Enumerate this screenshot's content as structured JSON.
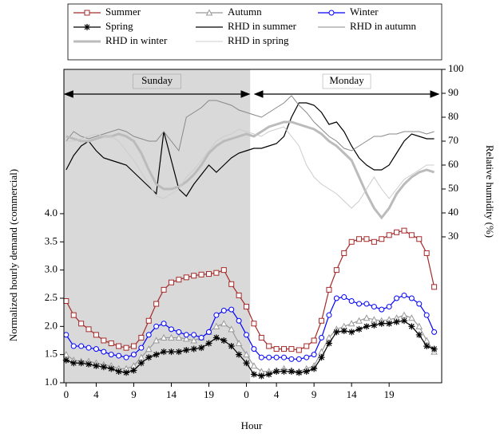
{
  "chart_data": {
    "type": "line",
    "xlabel": "Hour",
    "ylabel": "Normalized hourly demand (commercial)",
    "y2label": "Relative humidity (%)",
    "x": [
      0,
      1,
      2,
      3,
      4,
      5,
      6,
      7,
      8,
      9,
      10,
      11,
      12,
      13,
      14,
      15,
      16,
      17,
      18,
      19,
      20,
      21,
      22,
      23,
      24,
      25,
      26,
      27,
      28,
      29,
      30,
      31,
      32,
      33,
      34,
      35,
      36,
      37,
      38,
      39,
      40,
      41,
      42,
      43,
      44,
      45,
      46,
      47,
      48,
      49
    ],
    "xlim": [
      -0.3,
      50
    ],
    "xticks": [
      0,
      4,
      9,
      14,
      19,
      {
        "value": 24,
        "label": "0"
      },
      {
        "value": 28,
        "label": "4"
      },
      {
        "value": 33,
        "label": "9"
      },
      {
        "value": 38,
        "label": "14"
      },
      {
        "value": 43,
        "label": "19"
      }
    ],
    "ylim": [
      1,
      6.56
    ],
    "yticks": [
      {
        "value": 1,
        "label": "1.0"
      },
      1.5,
      {
        "value": 2,
        "label": "2.0"
      },
      2.5,
      {
        "value": 3,
        "label": "3.0"
      },
      3.5,
      {
        "value": 4,
        "label": "4.0"
      }
    ],
    "y2lim": [
      -31,
      100
    ],
    "y2ticks": [
      30,
      40,
      50,
      60,
      70,
      80,
      90,
      100
    ],
    "shaded_xlim": [
      -0.3,
      24.5
    ],
    "annotations": [
      {
        "text": "Sunday",
        "from": -0.3,
        "to": 24.5
      },
      {
        "text": "Monday",
        "from": 25,
        "to": 49.7
      }
    ],
    "series": [
      {
        "name": "Summer",
        "color": "#a52a2a",
        "marker": "square",
        "width": 1.2,
        "values": [
          2.45,
          2.2,
          2.05,
          1.95,
          1.85,
          1.75,
          1.7,
          1.65,
          1.62,
          1.65,
          1.8,
          2.1,
          2.4,
          2.65,
          2.78,
          2.83,
          2.87,
          2.9,
          2.92,
          2.93,
          2.95,
          3.0,
          2.75,
          2.55,
          2.35,
          2.05,
          1.8,
          1.65,
          1.6,
          1.6,
          1.6,
          1.58,
          1.65,
          1.75,
          2.1,
          2.65,
          3.0,
          3.3,
          3.5,
          3.55,
          3.55,
          3.5,
          3.55,
          3.62,
          3.67,
          3.7,
          3.62,
          3.55,
          3.3,
          2.7
        ]
      },
      {
        "name": "Autumn",
        "color": "#999999",
        "marker": "triangle",
        "width": 1.2,
        "values": [
          1.5,
          1.4,
          1.38,
          1.38,
          1.35,
          1.32,
          1.3,
          1.25,
          1.25,
          1.3,
          1.45,
          1.6,
          1.75,
          1.8,
          1.8,
          1.8,
          1.78,
          1.75,
          1.8,
          1.9,
          2.0,
          2.05,
          1.95,
          1.7,
          1.5,
          1.3,
          1.2,
          1.2,
          1.22,
          1.25,
          1.22,
          1.2,
          1.25,
          1.3,
          1.55,
          1.8,
          1.95,
          2.0,
          2.05,
          2.1,
          2.15,
          2.12,
          2.1,
          2.12,
          2.15,
          2.2,
          2.15,
          2.0,
          1.75,
          1.55
        ]
      },
      {
        "name": "Winter",
        "color": "#0000ff",
        "marker": "circle",
        "width": 1.2,
        "values": [
          1.85,
          1.65,
          1.65,
          1.62,
          1.6,
          1.55,
          1.5,
          1.48,
          1.45,
          1.5,
          1.62,
          1.85,
          2.0,
          2.05,
          1.95,
          1.9,
          1.85,
          1.85,
          1.8,
          1.9,
          2.2,
          2.28,
          2.3,
          2.1,
          1.85,
          1.6,
          1.45,
          1.45,
          1.45,
          1.45,
          1.42,
          1.42,
          1.45,
          1.5,
          1.8,
          2.2,
          2.5,
          2.52,
          2.45,
          2.4,
          2.4,
          2.35,
          2.3,
          2.35,
          2.5,
          2.55,
          2.5,
          2.4,
          2.2,
          1.9
        ]
      },
      {
        "name": "Spring",
        "color": "#000000",
        "marker": "star",
        "width": 1.2,
        "values": [
          1.4,
          1.35,
          1.35,
          1.33,
          1.3,
          1.28,
          1.25,
          1.2,
          1.18,
          1.22,
          1.35,
          1.45,
          1.5,
          1.55,
          1.55,
          1.55,
          1.58,
          1.6,
          1.62,
          1.7,
          1.8,
          1.75,
          1.65,
          1.5,
          1.35,
          1.15,
          1.12,
          1.15,
          1.2,
          1.2,
          1.2,
          1.18,
          1.2,
          1.25,
          1.45,
          1.7,
          1.9,
          1.92,
          1.9,
          1.95,
          2.0,
          2.02,
          2.05,
          2.05,
          2.08,
          2.1,
          2.0,
          1.85,
          1.65,
          1.6
        ]
      },
      {
        "name": "RHD in summer",
        "color": "#000000",
        "axis": "y2",
        "width": 1.2,
        "values": [
          58,
          64,
          68,
          70,
          66,
          63,
          62,
          61,
          60,
          57,
          54,
          51,
          48,
          74,
          62,
          50,
          47,
          52,
          56,
          60,
          57,
          60,
          63,
          65,
          66,
          67,
          67,
          68,
          69,
          72,
          80,
          86,
          86,
          85,
          82,
          77,
          78,
          74,
          68,
          63,
          60,
          58,
          58,
          60,
          65,
          70,
          73,
          72,
          71,
          71
        ]
      },
      {
        "name": "RHD in autumn",
        "color": "#888888",
        "axis": "y2",
        "width": 1,
        "values": [
          70,
          74,
          72,
          71,
          72,
          73,
          74,
          75,
          74,
          72,
          71,
          70,
          70,
          74,
          70,
          66,
          80,
          82,
          84,
          87,
          87,
          86,
          85,
          83,
          82,
          81,
          80,
          82,
          84,
          86,
          89,
          85,
          82,
          78,
          75,
          72,
          70,
          67,
          66,
          68,
          70,
          72,
          72,
          73,
          73,
          74,
          74,
          74,
          73,
          74
        ]
      },
      {
        "name": "RHD in winter",
        "color": "#bbbbbb",
        "axis": "y2",
        "width": 3,
        "values": [
          72,
          71,
          70,
          70,
          71,
          72,
          72,
          73,
          72,
          70,
          65,
          58,
          52,
          50,
          50,
          51,
          53,
          56,
          60,
          65,
          68,
          70,
          71,
          72,
          73,
          72,
          74,
          76,
          77,
          78,
          78,
          77,
          76,
          75,
          73,
          70,
          68,
          65,
          62,
          55,
          48,
          42,
          38,
          42,
          48,
          52,
          55,
          57,
          58,
          57
        ]
      },
      {
        "name": "RHD in spring",
        "color": "#cccccc",
        "axis": "y2",
        "width": 1,
        "values": [
          70,
          70,
          71,
          72,
          73,
          72,
          72,
          70,
          66,
          62,
          57,
          52,
          47,
          46,
          48,
          50,
          55,
          58,
          62,
          66,
          70,
          72,
          73,
          75,
          74,
          73,
          72,
          74,
          75,
          76,
          72,
          68,
          60,
          55,
          52,
          50,
          48,
          45,
          42,
          45,
          50,
          55,
          50,
          46,
          50,
          54,
          56,
          58,
          60,
          60
        ]
      }
    ]
  }
}
